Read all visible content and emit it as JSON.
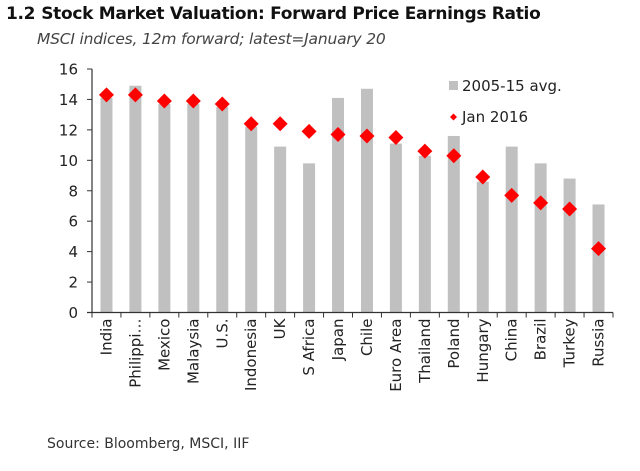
{
  "title_number": "1.2",
  "title": "Stock Market Valuation:  Forward Price Earnings Ratio",
  "subtitle": "MSCI indices, 12m forward; latest=January 20",
  "source": "Source: Bloomberg, MSCI, IIF",
  "colors": {
    "bar": "#c0c0c0",
    "marker": "#ff0000",
    "axis": "#333333"
  },
  "chart_data": {
    "type": "bar",
    "title": "Stock Market Valuation: Forward Price Earnings Ratio",
    "subtitle": "MSCI indices, 12m forward; latest=January 20",
    "xlabel": "",
    "ylabel": "",
    "ylim": [
      0,
      16
    ],
    "yticks": [
      0,
      2,
      4,
      6,
      8,
      10,
      12,
      14,
      16
    ],
    "grid": false,
    "legend_position": "top-right",
    "categories": [
      "India",
      "Philippi…",
      "Mexico",
      "Malaysia",
      "U.S.",
      "Indonesia",
      "UK",
      "S Africa",
      "Japan",
      "Chile",
      "Euro Area",
      "Thailand",
      "Poland",
      "Hungary",
      "China",
      "Brazil",
      "Turkey",
      "Russia"
    ],
    "series": [
      {
        "name": "2005-15 avg.",
        "type": "bar",
        "values": [
          14.1,
          14.9,
          13.7,
          13.7,
          13.5,
          12.2,
          10.9,
          9.8,
          14.1,
          14.7,
          11.1,
          10.3,
          11.6,
          8.6,
          10.9,
          9.8,
          8.8,
          7.1
        ]
      },
      {
        "name": "Jan 2016",
        "type": "scatter",
        "marker": "diamond",
        "values": [
          14.3,
          14.3,
          13.9,
          13.9,
          13.7,
          12.4,
          12.4,
          11.9,
          11.7,
          11.6,
          11.5,
          10.6,
          10.3,
          8.9,
          7.7,
          7.2,
          6.8,
          4.2
        ]
      }
    ]
  }
}
